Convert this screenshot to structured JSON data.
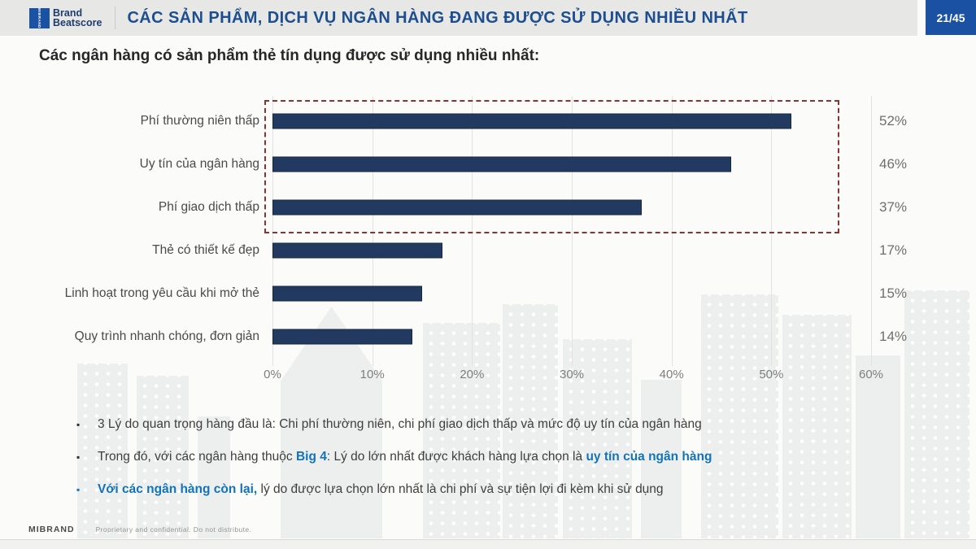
{
  "header": {
    "logo": {
      "mark": "MIBRAND",
      "line1": "Brand",
      "line2": "Beatscore"
    },
    "title": "CÁC SẢN PHẨM, DỊCH VỤ NGÂN HÀNG ĐANG ĐƯỢC SỬ DỤNG NHIỀU NHẤT",
    "page_indicator": "21/45"
  },
  "subtitle": "Các ngân hàng có sản phẩm thẻ tín dụng được sử dụng nhiều nhất:",
  "chart_data": {
    "type": "bar",
    "orientation": "horizontal",
    "title": "Các ngân hàng có sản phẩm thẻ tín dụng được sử dụng nhiều nhất",
    "categories": [
      "Phí thường niên thấp",
      "Uy tín của ngân hàng",
      "Phí giao dịch thấp",
      "Thẻ có thiết kế đẹp",
      "Linh hoạt trong yêu cầu khi mở thẻ",
      "Quy trình nhanh chóng, đơn giản"
    ],
    "values": [
      52,
      46,
      37,
      17,
      15,
      14
    ],
    "value_labels": [
      "52%",
      "46%",
      "37%",
      "17%",
      "15%",
      "14%"
    ],
    "tick_labels": [
      "0%",
      "10%",
      "20%",
      "30%",
      "40%",
      "50%",
      "60%"
    ],
    "xlim": [
      0,
      60
    ],
    "grid": "vertical-gridlines",
    "legend": "none",
    "bar_color": "#233a60",
    "highlight": {
      "rows_highlighted": [
        0,
        1,
        2
      ],
      "border_color": "#8a3430",
      "style": "dashed-rectangle"
    }
  },
  "bullet_glyph": "▪",
  "notes": [
    {
      "segments": [
        {
          "text": "3 Lý do quan trọng hàng đầu là: Chi phí thường niên, chi phí giao dịch thấp và mức độ uy tín của ngân hàng"
        }
      ]
    },
    {
      "segments": [
        {
          "text": "Trong đó, với các ngân hàng thuộc "
        },
        {
          "text": "Big 4"
        },
        {
          "text": ": Lý do lớn nhất được khách hàng lựa chọn là "
        },
        {
          "text": "uy tín của ngân hàng"
        }
      ]
    },
    {
      "segments": [
        {
          "text": "Với các ngân hàng còn lại,"
        },
        {
          "text": " lý do được lựa chọn lớn nhất là chi phí và sự tiện lợi đi kèm khi sử dụng"
        }
      ]
    }
  ],
  "footer": {
    "brand": "MIBRAND",
    "confidential": "Proprietary and confidential. Do not distribute."
  },
  "colors": {
    "header_bg": "#e7e8e5",
    "header_title": "#1d4e8f",
    "badge_bg": "#1b51a3",
    "bar": "#233a60",
    "highlight_border": "#8a3430",
    "accent_text": "#1273b8"
  }
}
